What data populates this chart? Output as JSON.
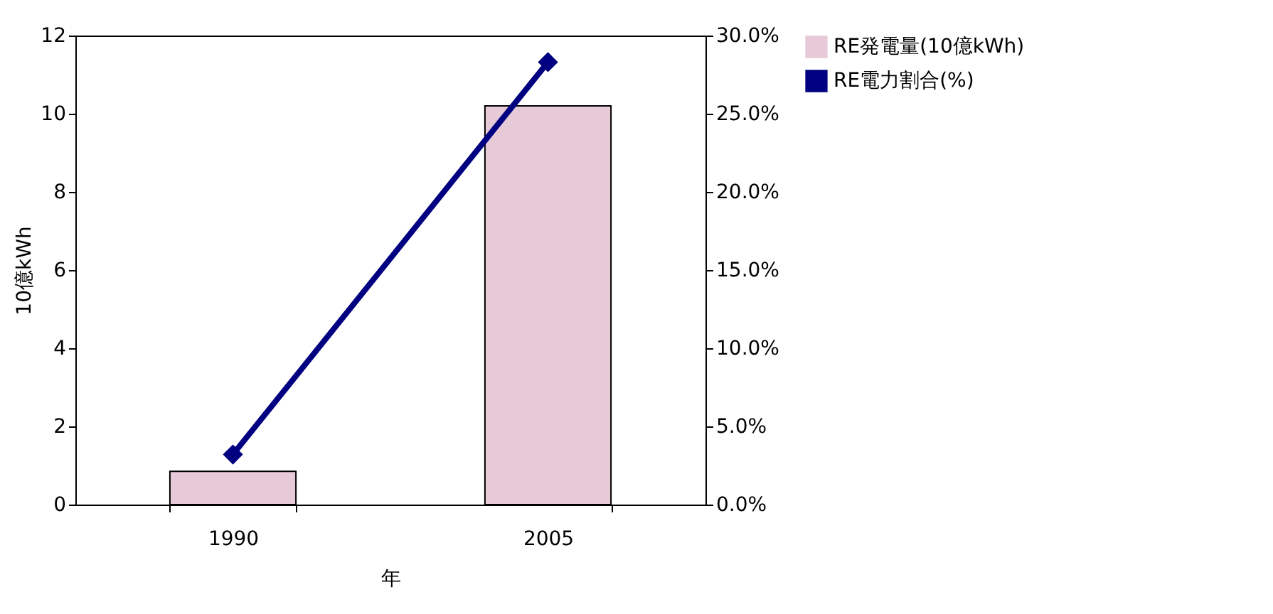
{
  "chart_data": {
    "type": "bar",
    "xlabel": "年",
    "ylabel": "10億kWh",
    "categories": [
      "1990",
      "2005"
    ],
    "series": [
      {
        "name": "RE発電量(10億kWh)",
        "color": "#e6cad8",
        "values": [
          0.85,
          10.2
        ]
      },
      {
        "name": "RE電力割合(%)",
        "type": "line",
        "axis": "y2",
        "color": "#000080",
        "values": [
          3.2,
          28.3
        ]
      }
    ],
    "ylim": [
      0,
      12
    ],
    "yticks": [
      0,
      2,
      4,
      6,
      8,
      10,
      12
    ],
    "y2lim": [
      0,
      30
    ],
    "y2ticks": [
      {
        "value": 0,
        "label": "0.0%"
      },
      {
        "value": 5,
        "label": "5.0%"
      },
      {
        "value": 10,
        "label": "10.0%"
      },
      {
        "value": 15,
        "label": "15.0%"
      },
      {
        "value": 20,
        "label": "20.0%"
      },
      {
        "value": 25,
        "label": "25.0%"
      },
      {
        "value": 30,
        "label": "30.0%"
      }
    ],
    "legend": "right",
    "marker": "diamond",
    "grid": false
  }
}
